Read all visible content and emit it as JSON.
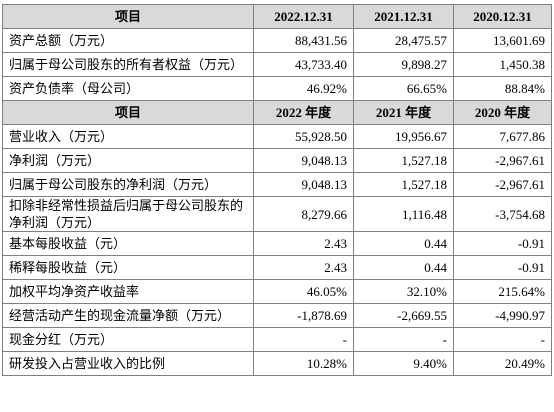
{
  "table": {
    "sections": [
      {
        "header": [
          "项目",
          "2022.12.31",
          "2021.12.31",
          "2020.12.31"
        ],
        "rows": [
          [
            "资产总额（万元）",
            "88,431.56",
            "28,475.57",
            "13,601.69"
          ],
          [
            "归属于母公司股东的所有者权益（万元）",
            "43,733.40",
            "9,898.27",
            "1,450.38"
          ],
          [
            "资产负债率（母公司）",
            "46.92%",
            "66.65%",
            "88.84%"
          ]
        ]
      },
      {
        "header": [
          "项目",
          "2022 年度",
          "2021 年度",
          "2020 年度"
        ],
        "rows": [
          [
            "营业收入（万元）",
            "55,928.50",
            "19,956.67",
            "7,677.86"
          ],
          [
            "净利润（万元）",
            "9,048.13",
            "1,527.18",
            "-2,967.61"
          ],
          [
            "归属于母公司股东的净利润（万元）",
            "9,048.13",
            "1,527.18",
            "-2,967.61"
          ],
          [
            "扣除非经常性损益后归属于母公司股东的净利润（万元）",
            "8,279.66",
            "1,116.48",
            "-3,754.68"
          ],
          [
            "基本每股收益（元）",
            "2.43",
            "0.44",
            "-0.91"
          ],
          [
            "稀释每股收益（元）",
            "2.43",
            "0.44",
            "-0.91"
          ],
          [
            "加权平均净资产收益率",
            "46.05%",
            "32.10%",
            "215.64%"
          ],
          [
            "经营活动产生的现金流量净额（万元）",
            "-1,878.69",
            "-2,669.55",
            "-4,990.97"
          ],
          [
            "现金分红（万元）",
            "-",
            "-",
            "-"
          ],
          [
            "研发投入占营业收入的比例",
            "10.28%",
            "9.40%",
            "20.49%"
          ]
        ]
      }
    ]
  }
}
